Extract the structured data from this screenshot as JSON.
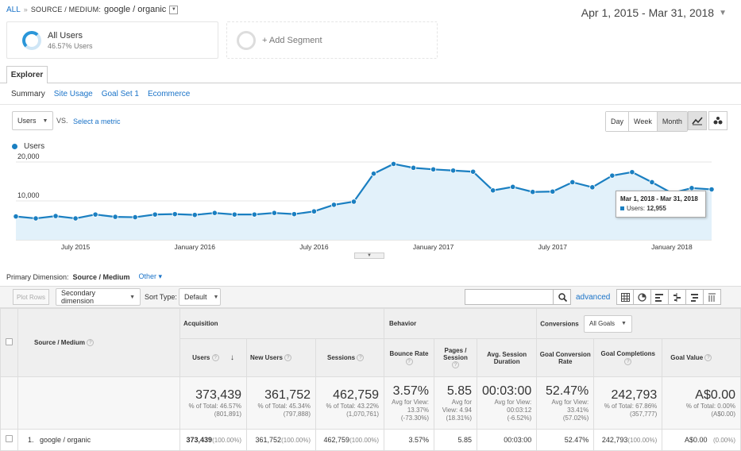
{
  "breadcrumb": {
    "all": "ALL",
    "sep": "»",
    "dimension": "SOURCE / MEDIUM:",
    "value": "google / organic"
  },
  "date_range": "Apr 1, 2015 - Mar 31, 2018",
  "segments": [
    {
      "name": "All Users",
      "sub": "46.57% Users"
    },
    {
      "name": "+ Add Segment"
    }
  ],
  "tabs": {
    "explorer": "Explorer",
    "sub": [
      "Summary",
      "Site Usage",
      "Goal Set 1",
      "Ecommerce"
    ]
  },
  "metric_select": "Users",
  "vs": "VS.",
  "select_metric": "Select a metric",
  "period_buttons": [
    "Day",
    "Week",
    "Month"
  ],
  "legend": "Users",
  "colors": {
    "line": "#1a7fc1",
    "fill": "#e2f1fa",
    "accent": "#1a73c8"
  },
  "tooltip": {
    "date": "Mar 1, 2018 - Mar 31, 2018",
    "label": "Users:",
    "value": "12,955"
  },
  "chart_data": {
    "type": "line",
    "title": "",
    "xlabel": "",
    "ylabel": "",
    "ylim": [
      0,
      20000
    ],
    "y_ticks": [
      "20,000",
      "10,000"
    ],
    "x_tick_labels": [
      "July 2015",
      "January 2016",
      "July 2016",
      "January 2017",
      "July 2017",
      "January 2018"
    ],
    "x": [
      "Apr 2015",
      "May 2015",
      "Jun 2015",
      "Jul 2015",
      "Aug 2015",
      "Sep 2015",
      "Oct 2015",
      "Nov 2015",
      "Dec 2015",
      "Jan 2016",
      "Feb 2016",
      "Mar 2016",
      "Apr 2016",
      "May 2016",
      "Jun 2016",
      "Jul 2016",
      "Aug 2016",
      "Sep 2016",
      "Oct 2016",
      "Nov 2016",
      "Dec 2016",
      "Jan 2017",
      "Feb 2017",
      "Mar 2017",
      "Apr 2017",
      "May 2017",
      "Jun 2017",
      "Jul 2017",
      "Aug 2017",
      "Sep 2017",
      "Oct 2017",
      "Nov 2017",
      "Dec 2017",
      "Jan 2018",
      "Feb 2018",
      "Mar 2018"
    ],
    "series": [
      {
        "name": "Users",
        "values": [
          6000,
          5500,
          6100,
          5500,
          6500,
          5900,
          5800,
          6500,
          6600,
          6400,
          6900,
          6500,
          6500,
          6900,
          6600,
          7300,
          9000,
          9800,
          17000,
          19500,
          18500,
          18100,
          17800,
          17500,
          12700,
          13600,
          12300,
          12400,
          14800,
          13500,
          16500,
          17400,
          14800,
          12000,
          13300,
          12955
        ]
      }
    ]
  },
  "primary_dimension": {
    "label": "Primary Dimension:",
    "value": "Source / Medium",
    "other": "Other ▾"
  },
  "toolbar": {
    "plot_rows": "Plot Rows",
    "secondary_dimension": "Secondary dimension",
    "sort_type": "Sort Type:",
    "sort_value": "Default",
    "advanced": "advanced"
  },
  "table": {
    "dim_header": "Source / Medium",
    "groups": {
      "acquisition": "Acquisition",
      "behavior": "Behavior",
      "conversions": "Conversions",
      "goals_select": "All Goals"
    },
    "columns": [
      "Users",
      "New Users",
      "Sessions",
      "Bounce Rate",
      "Pages / Session",
      "Avg. Session Duration",
      "Goal Conversion Rate",
      "Goal Completions",
      "Goal Value"
    ],
    "totals": [
      {
        "value": "373,439",
        "sub1": "% of Total: 46.57%",
        "sub2": "(801,891)"
      },
      {
        "value": "361,752",
        "sub1": "% of Total: 45.34%",
        "sub2": "(797,888)"
      },
      {
        "value": "462,759",
        "sub1": "% of Total: 43.22%",
        "sub2": "(1,070,761)"
      },
      {
        "value": "3.57%",
        "sub1": "Avg for View: 13.37%",
        "sub2": "(-73.30%)"
      },
      {
        "value": "5.85",
        "sub1": "Avg for View: 4.94",
        "sub2": "(18.31%)"
      },
      {
        "value": "00:03:00",
        "sub1": "Avg for View: 00:03:12",
        "sub2": "(-6.52%)"
      },
      {
        "value": "52.47%",
        "sub1": "Avg for View: 33.41%",
        "sub2": "(57.02%)"
      },
      {
        "value": "242,793",
        "sub1": "% of Total: 67.86%",
        "sub2": "(357,777)"
      },
      {
        "value": "A$0.00",
        "sub1": "% of Total: 0.00%",
        "sub2": "(A$0.00)"
      }
    ],
    "row": {
      "index": "1.",
      "dim": "google / organic",
      "users": "373,439",
      "users_pct": "(100.00%)",
      "new_users": "361,752",
      "new_users_pct": "(100.00%)",
      "sessions": "462,759",
      "sessions_pct": "(100.00%)",
      "bounce": "3.57%",
      "pages": "5.85",
      "duration": "00:03:00",
      "conv_rate": "52.47%",
      "completions": "242,793",
      "completions_pct": "(100.00%)",
      "value": "A$0.00",
      "value_pct": "(0.00%)"
    }
  }
}
